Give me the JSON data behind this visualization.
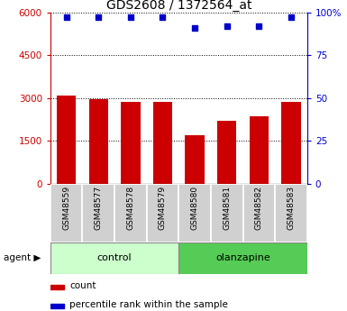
{
  "title": "GDS2608 / 1372564_at",
  "categories": [
    "GSM48559",
    "GSM48577",
    "GSM48578",
    "GSM48579",
    "GSM48580",
    "GSM48581",
    "GSM48582",
    "GSM48583"
  ],
  "bar_values": [
    3100,
    2950,
    2850,
    2850,
    1700,
    2200,
    2350,
    2850
  ],
  "percentile_values": [
    97,
    97,
    97,
    97,
    91,
    92,
    92,
    97
  ],
  "bar_color": "#cc0000",
  "dot_color": "#0000cc",
  "ylim_left": [
    0,
    6000
  ],
  "ylim_right": [
    0,
    100
  ],
  "yticks_left": [
    0,
    1500,
    3000,
    4500,
    6000
  ],
  "ytick_labels_left": [
    "0",
    "1500",
    "3000",
    "4500",
    "6000"
  ],
  "yticks_right": [
    0,
    25,
    50,
    75,
    100
  ],
  "ytick_labels_right": [
    "0",
    "25",
    "50",
    "75",
    "100%"
  ],
  "control_label": "control",
  "olanzapine_label": "olanzapine",
  "control_color": "#ccffcc",
  "olanzapine_color": "#55cc55",
  "legend_count_label": "count",
  "legend_pct_label": "percentile rank within the sample",
  "xlabel_area_color": "#d0d0d0",
  "agent_label": "agent"
}
